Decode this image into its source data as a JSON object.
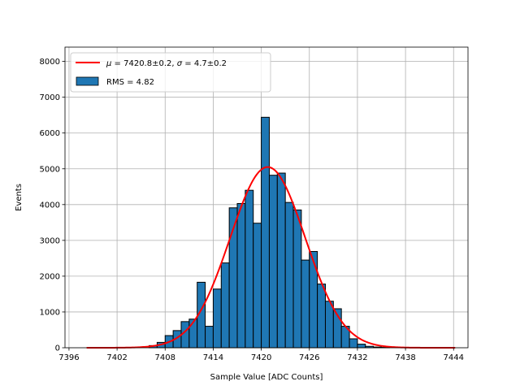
{
  "chart_data": {
    "type": "bar",
    "xlabel": "Sample Value [ADC Counts]",
    "ylabel": "Events",
    "xlim": [
      7395.5,
      7445.8
    ],
    "ylim": [
      0,
      8400
    ],
    "grid": true,
    "legend_position": "top-left",
    "x_ticks": [
      7396,
      7402,
      7408,
      7414,
      7420,
      7426,
      7432,
      7438,
      7444
    ],
    "y_ticks": [
      0,
      1000,
      2000,
      3000,
      4000,
      5000,
      6000,
      7000,
      8000
    ],
    "bin_width": 1,
    "histogram": {
      "name": "RMS = 4.82",
      "color": "#1f77b4",
      "edge_color": "#000000",
      "bin_left_edges": [
        7406,
        7407,
        7408,
        7409,
        7410,
        7411,
        7412,
        7413,
        7414,
        7415,
        7416,
        7417,
        7418,
        7419,
        7420,
        7421,
        7422,
        7423,
        7424,
        7425,
        7426,
        7427,
        7428,
        7429,
        7430,
        7431,
        7432,
        7433,
        7434,
        7435
      ],
      "counts": [
        60,
        150,
        340,
        480,
        730,
        800,
        1830,
        600,
        1640,
        2370,
        3910,
        4030,
        4400,
        3480,
        6440,
        4820,
        4880,
        4060,
        3850,
        2450,
        2690,
        1780,
        1300,
        1090,
        600,
        250,
        100,
        40,
        20,
        10
      ]
    },
    "fit": {
      "name": "$\\mu = 7420.8 \\pm 0.2$, $\\sigma = 4.7 \\pm 0.2$",
      "color": "#ff0000",
      "type": "gaussian",
      "mu": 7420.8,
      "sigma": 4.7,
      "amplitude": 5050,
      "x_range": [
        7398.2,
        7444.2
      ]
    },
    "legend": {
      "fit_mu_symbol": "μ",
      "fit_mu_value": " = 7420.8±0.2, ",
      "fit_sigma_symbol": "σ",
      "fit_sigma_value": " = 4.7±0.2",
      "hist_label": "RMS = 4.82"
    }
  }
}
